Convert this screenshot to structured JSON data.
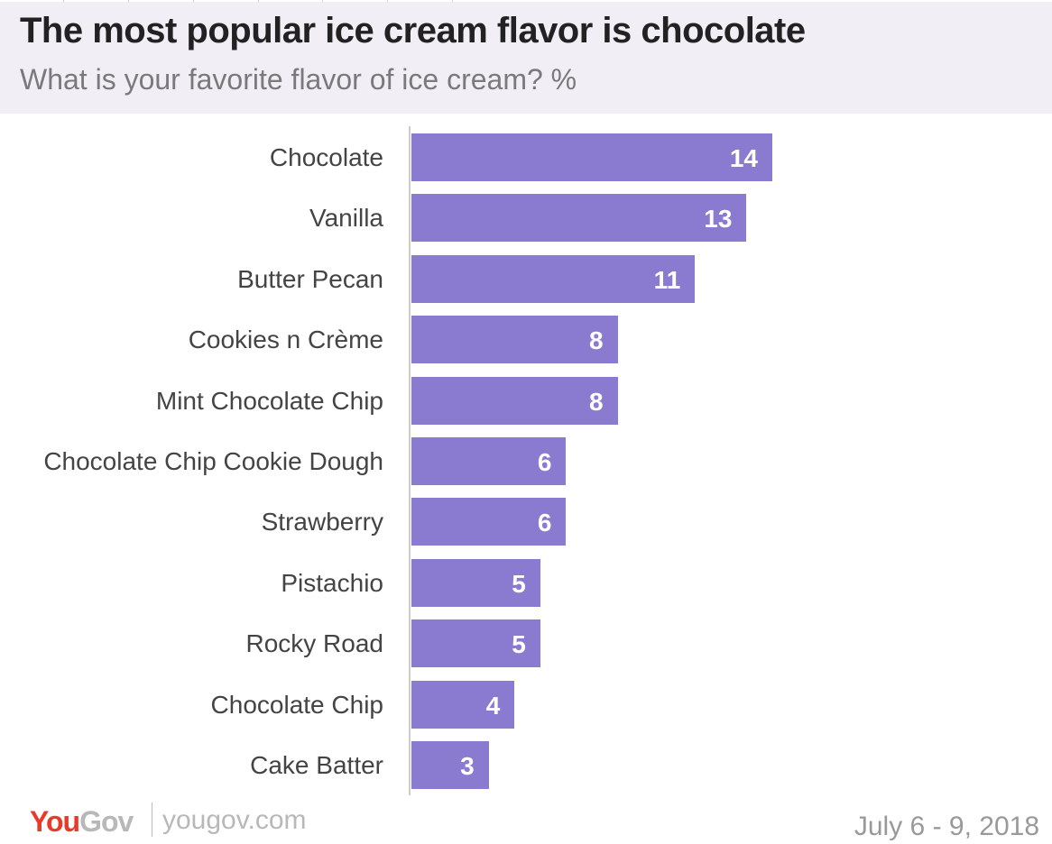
{
  "chart_data": {
    "type": "bar",
    "orientation": "horizontal",
    "title": "The most popular ice cream flavor is chocolate",
    "subtitle": "What is your favorite flavor of ice cream? %",
    "categories": [
      "Chocolate",
      "Vanilla",
      "Butter Pecan",
      "Cookies n Crème",
      "Mint Chocolate Chip",
      "Chocolate Chip Cookie Dough",
      "Strawberry",
      "Pistachio",
      "Rocky Road",
      "Chocolate Chip",
      "Cake Batter"
    ],
    "values": [
      14,
      13,
      11,
      8,
      8,
      6,
      6,
      5,
      5,
      4,
      3
    ],
    "xlim": [
      0,
      14
    ],
    "bar_color": "#8a7bd1",
    "grid": false,
    "data_labels": true
  },
  "footer": {
    "brand_you": "You",
    "brand_gov": "Gov",
    "site": "yougov.com",
    "date": "July 6 - 9, 2018"
  },
  "colors": {
    "header_bg": "#f1eef5",
    "brand_red": "#e8392a"
  }
}
